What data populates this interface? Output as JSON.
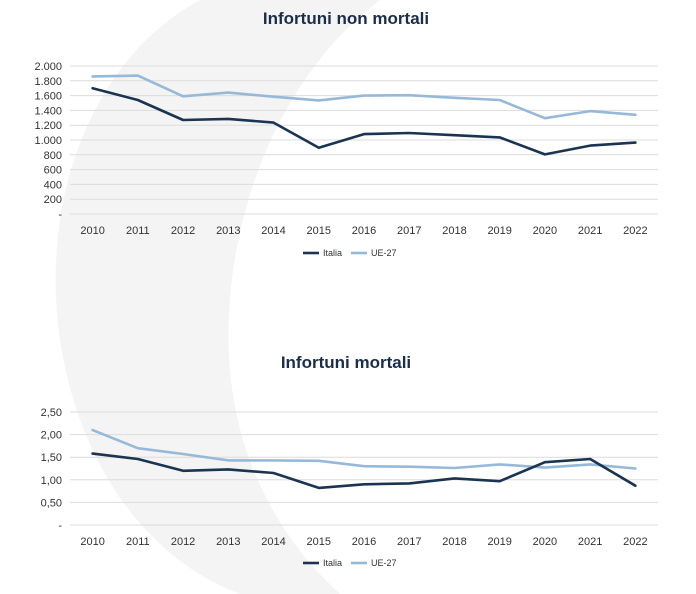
{
  "colors": {
    "italia": "#1b3452",
    "ue27": "#97b9d8",
    "grid": "#dcdcdc",
    "watermark": "#f3f3f3"
  },
  "chart_data": [
    {
      "type": "line",
      "title": "Infortuni non mortali",
      "categories": [
        "2010",
        "2011",
        "2012",
        "2013",
        "2014",
        "2015",
        "2016",
        "2017",
        "2018",
        "2019",
        "2020",
        "2021",
        "2022"
      ],
      "series": [
        {
          "name": "Italia",
          "values": [
            1700,
            1540,
            1270,
            1285,
            1235,
            895,
            1080,
            1095,
            1065,
            1035,
            805,
            925,
            965
          ]
        },
        {
          "name": "UE-27",
          "values": [
            1860,
            1870,
            1590,
            1640,
            1585,
            1535,
            1600,
            1605,
            1570,
            1540,
            1295,
            1390,
            1340
          ]
        }
      ],
      "ylim": [
        0,
        2000
      ],
      "yticks": [
        "-",
        "200",
        "400",
        "600",
        "800",
        "1.000",
        "1.200",
        "1.400",
        "1.600",
        "1.800",
        "2.000"
      ],
      "legend": [
        "Italia",
        "UE-27"
      ],
      "grid": true
    },
    {
      "type": "line",
      "title": "Infortuni mortali",
      "categories": [
        "2010",
        "2011",
        "2012",
        "2013",
        "2014",
        "2015",
        "2016",
        "2017",
        "2018",
        "2019",
        "2020",
        "2021",
        "2022"
      ],
      "series": [
        {
          "name": "Italia",
          "values": [
            1.58,
            1.46,
            1.2,
            1.23,
            1.15,
            0.82,
            0.9,
            0.92,
            1.03,
            0.97,
            1.39,
            1.46,
            0.87
          ]
        },
        {
          "name": "UE-27",
          "values": [
            2.1,
            1.7,
            1.57,
            1.43,
            1.43,
            1.42,
            1.3,
            1.29,
            1.26,
            1.34,
            1.27,
            1.34,
            1.25
          ]
        }
      ],
      "ylim": [
        0,
        2.5
      ],
      "yticks": [
        "-",
        "0,50",
        "1,00",
        "1,50",
        "2,00",
        "2,50"
      ],
      "legend": [
        "Italia",
        "UE-27"
      ],
      "grid": true
    }
  ]
}
